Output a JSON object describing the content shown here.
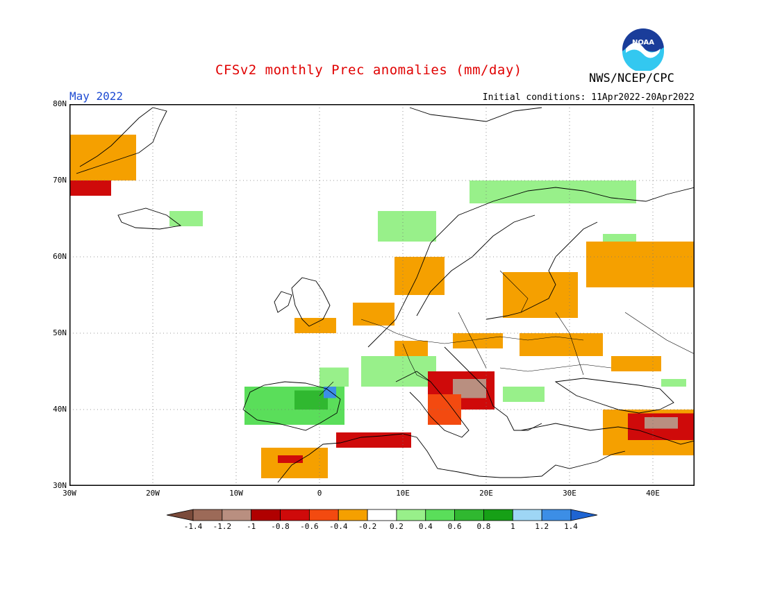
{
  "title": "CFSv2 monthly Prec anomalies (mm/day)",
  "agency": "NWS/NCEP/CPC",
  "logo_text": "NOAA",
  "month_label": "May 2022",
  "initial_conditions": "Initial conditions: 11Apr2022-20Apr2022",
  "map": {
    "lon_range": [
      -30,
      45
    ],
    "lat_range": [
      30,
      80
    ],
    "lat_labels": [
      {
        "lat": 80,
        "label": "80N"
      },
      {
        "lat": 70,
        "label": "70N"
      },
      {
        "lat": 60,
        "label": "60N"
      },
      {
        "lat": 50,
        "label": "50N"
      },
      {
        "lat": 40,
        "label": "40N"
      },
      {
        "lat": 30,
        "label": "30N"
      }
    ],
    "lon_labels": [
      {
        "lon": -30,
        "label": "30W"
      },
      {
        "lon": -20,
        "label": "20W"
      },
      {
        "lon": -10,
        "label": "10W"
      },
      {
        "lon": 0,
        "label": "0"
      },
      {
        "lon": 10,
        "label": "10E"
      },
      {
        "lon": 20,
        "label": "20E"
      },
      {
        "lon": 30,
        "label": "30E"
      },
      {
        "lon": 40,
        "label": "40E"
      }
    ],
    "grid": "dotted",
    "anomaly_regions": [
      {
        "name": "greenland",
        "level": -0.3,
        "lon": [
          -30,
          -22
        ],
        "lat": [
          70,
          76
        ]
      },
      {
        "name": "greenland-south",
        "level": -0.7,
        "lon": [
          -30,
          -25
        ],
        "lat": [
          68,
          70
        ]
      },
      {
        "name": "iceland",
        "level": 0.3,
        "lon": [
          -18,
          -14
        ],
        "lat": [
          64,
          66
        ]
      },
      {
        "name": "iberia",
        "level": 0.5,
        "lon": [
          -9,
          3
        ],
        "lat": [
          38,
          43
        ]
      },
      {
        "name": "iberia-north",
        "level": 0.7,
        "lon": [
          -3,
          1
        ],
        "lat": [
          40,
          42.5
        ]
      },
      {
        "name": "pyrenees",
        "level": 1.3,
        "lon": [
          0.5,
          2
        ],
        "lat": [
          41.5,
          43
        ]
      },
      {
        "name": "pyrenees-north",
        "level": 0.3,
        "lon": [
          0,
          3.5
        ],
        "lat": [
          43,
          45.5
        ]
      },
      {
        "name": "alps",
        "level": 0.4,
        "lon": [
          5,
          14
        ],
        "lat": [
          43,
          47
        ]
      },
      {
        "name": "balkans",
        "level": -0.7,
        "lon": [
          13,
          21
        ],
        "lat": [
          40,
          45
        ]
      },
      {
        "name": "dalmatia",
        "level": -1.0,
        "lon": [
          16,
          20
        ],
        "lat": [
          41.5,
          44
        ]
      },
      {
        "name": "italy-south",
        "level": -0.5,
        "lon": [
          13,
          17
        ],
        "lat": [
          38,
          42
        ]
      },
      {
        "name": "north-africa",
        "level": -0.7,
        "lon": [
          2,
          11
        ],
        "lat": [
          35,
          37
        ]
      },
      {
        "name": "morocco",
        "level": -0.3,
        "lon": [
          -7,
          1
        ],
        "lat": [
          31,
          35
        ]
      },
      {
        "name": "morocco-core",
        "level": -0.7,
        "lon": [
          -5,
          -2
        ],
        "lat": [
          33,
          34
        ]
      },
      {
        "name": "turkey-east",
        "level": -0.3,
        "lon": [
          34,
          45
        ],
        "lat": [
          34,
          40
        ]
      },
      {
        "name": "turkey-core",
        "level": -0.7,
        "lon": [
          37,
          45
        ],
        "lat": [
          36,
          39.5
        ]
      },
      {
        "name": "turkey-dark",
        "level": -1.0,
        "lon": [
          39,
          43
        ],
        "lat": [
          37.5,
          39
        ]
      },
      {
        "name": "scandinavia-north",
        "level": 0.3,
        "lon": [
          18,
          38
        ],
        "lat": [
          67,
          70
        ]
      },
      {
        "name": "norway-coast",
        "level": 0.3,
        "lon": [
          7,
          14
        ],
        "lat": [
          62,
          66
        ]
      },
      {
        "name": "kola-north",
        "level": 0.3,
        "lon": [
          34,
          38
        ],
        "lat": [
          61,
          63
        ]
      },
      {
        "name": "russia-north",
        "level": -0.3,
        "lon": [
          32,
          45
        ],
        "lat": [
          56,
          62
        ]
      },
      {
        "name": "baltic",
        "level": -0.3,
        "lon": [
          22,
          31
        ],
        "lat": [
          52,
          58
        ]
      },
      {
        "name": "southern-sweden",
        "level": -0.3,
        "lon": [
          9,
          15
        ],
        "lat": [
          55,
          60
        ]
      },
      {
        "name": "ukraine",
        "level": -0.3,
        "lon": [
          24,
          34
        ],
        "lat": [
          47,
          50
        ]
      },
      {
        "name": "russia-south",
        "level": -0.3,
        "lon": [
          35,
          41
        ],
        "lat": [
          45,
          47
        ]
      },
      {
        "name": "britain-south",
        "level": -0.3,
        "lon": [
          -3,
          2
        ],
        "lat": [
          50,
          52
        ]
      },
      {
        "name": "benelux",
        "level": -0.3,
        "lon": [
          4,
          9
        ],
        "lat": [
          51,
          54
        ]
      },
      {
        "name": "germany-south",
        "level": -0.3,
        "lon": [
          9,
          13
        ],
        "lat": [
          47,
          49
        ]
      },
      {
        "name": "poland-south",
        "level": -0.3,
        "lon": [
          16,
          22
        ],
        "lat": [
          48,
          50
        ]
      },
      {
        "name": "bulgaria",
        "level": 0.3,
        "lon": [
          22,
          27
        ],
        "lat": [
          41,
          43
        ]
      },
      {
        "name": "caucasus",
        "level": 0.3,
        "lon": [
          41,
          44
        ],
        "lat": [
          43,
          44
        ]
      }
    ]
  },
  "colorbar": {
    "labels": [
      "-1.4",
      "-1.2",
      "-1",
      "-0.8",
      "-0.6",
      "-0.4",
      "-0.2",
      "0.2",
      "0.4",
      "0.6",
      "0.8",
      "1",
      "1.2",
      "1.4"
    ],
    "colors": [
      "#7a4a3a",
      "#9c6a58",
      "#b98f80",
      "#b00000",
      "#cf0a0a",
      "#f34a10",
      "#f5a000",
      "#ffffff",
      "#98f08a",
      "#5ade5a",
      "#30b830",
      "#16a016",
      "#9ed6f5",
      "#3c8ee6",
      "#1e64d2"
    ]
  }
}
